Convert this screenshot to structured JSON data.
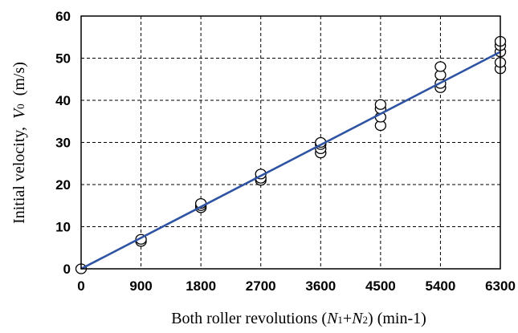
{
  "chart_data": {
    "type": "scatter",
    "xlabel_parts": [
      "Both roller revolutions (",
      "N",
      "1",
      "+",
      "N",
      "2",
      ") (min-1)"
    ],
    "ylabel_parts": [
      "Initial velocity,  ",
      "V",
      "0",
      "  (m/s)"
    ],
    "x_ticks": [
      "0",
      "900",
      "1800",
      "2700",
      "3600",
      "4500",
      "5400",
      "6300"
    ],
    "y_ticks": [
      "0",
      "10",
      "20",
      "30",
      "40",
      "50",
      "60"
    ],
    "xlim": [
      0,
      6300
    ],
    "ylim": [
      0,
      60
    ],
    "grid": true,
    "colors": {
      "fit_line": "#2f53a3",
      "marker_edge": "#000000",
      "marker_fill": "#ffffff"
    },
    "series": [
      {
        "type": "scatter",
        "points": [
          [
            0,
            0
          ],
          [
            900,
            6.5
          ],
          [
            900,
            7.0
          ],
          [
            1800,
            14.5
          ],
          [
            1800,
            15.0
          ],
          [
            1800,
            15.5
          ],
          [
            2700,
            21.0
          ],
          [
            2700,
            21.5
          ],
          [
            2700,
            22.5
          ],
          [
            3600,
            27.5
          ],
          [
            3600,
            28.5
          ],
          [
            3600,
            29.5
          ],
          [
            3600,
            30.0
          ],
          [
            4500,
            34.0
          ],
          [
            4500,
            36.0
          ],
          [
            4500,
            38.0
          ],
          [
            4500,
            39.0
          ],
          [
            5400,
            43.0
          ],
          [
            5400,
            44.0
          ],
          [
            5400,
            46.0
          ],
          [
            5400,
            48.0
          ],
          [
            6300,
            47.5
          ],
          [
            6300,
            49.0
          ],
          [
            6300,
            51.5
          ],
          [
            6300,
            53.0
          ],
          [
            6300,
            54.0
          ]
        ]
      },
      {
        "type": "line",
        "points": [
          [
            0,
            0
          ],
          [
            6300,
            51.5
          ]
        ]
      }
    ]
  }
}
